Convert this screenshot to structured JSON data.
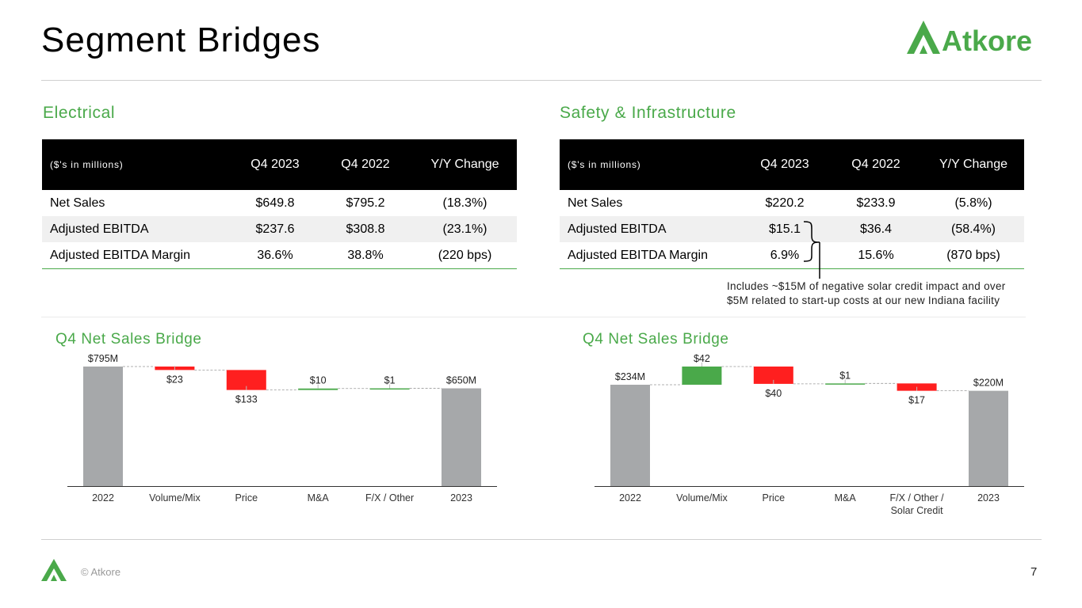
{
  "header": {
    "title": "Segment Bridges",
    "logo_text": "Atkore"
  },
  "colors": {
    "accent_green": "#4aa94a",
    "bar_gray": "#a6a8aa",
    "bar_red": "#ff1f1f",
    "bar_green": "#4aa94a"
  },
  "electrical": {
    "title": "Electrical",
    "table": {
      "unit_label": "($'s in millions)",
      "columns": [
        "Q4 2023",
        "Q4 2022",
        "Y/Y Change"
      ],
      "rows": [
        {
          "label": "Net Sales",
          "values": [
            "$649.8",
            "$795.2",
            "(18.3%)"
          ]
        },
        {
          "label": "Adjusted EBITDA",
          "values": [
            "$237.6",
            "$308.8",
            "(23.1%)"
          ]
        },
        {
          "label": "Adjusted EBITDA Margin",
          "values": [
            "36.6%",
            "38.8%",
            "(220 bps)"
          ]
        }
      ]
    }
  },
  "safety": {
    "title": "Safety & Infrastructure",
    "table": {
      "unit_label": "($'s in millions)",
      "columns": [
        "Q4 2023",
        "Q4 2022",
        "Y/Y Change"
      ],
      "rows": [
        {
          "label": "Net Sales",
          "values": [
            "$220.2",
            "$233.9",
            "(5.8%)"
          ]
        },
        {
          "label": "Adjusted EBITDA",
          "values": [
            "$15.1",
            "$36.4",
            "(58.4%)"
          ]
        },
        {
          "label": "Adjusted EBITDA Margin",
          "values": [
            "6.9%",
            "15.6%",
            "(870 bps)"
          ]
        }
      ]
    },
    "note_line1": "Includes ~$15M of negative solar credit impact and over",
    "note_line2": "$5M related to start-up costs at our new Indiana facility"
  },
  "chart_data": [
    {
      "type": "bar",
      "subtype": "waterfall",
      "title": "Q4 Net Sales Bridge",
      "categories": [
        "2022",
        "Volume/Mix",
        "Price",
        "M&A",
        "F/X / Other",
        "2023"
      ],
      "steps": [
        {
          "kind": "total",
          "value": 795,
          "label": "$795M"
        },
        {
          "kind": "delta",
          "value": -23,
          "label": "$23"
        },
        {
          "kind": "delta",
          "value": -133,
          "label": "$133"
        },
        {
          "kind": "delta",
          "value": 10,
          "label": "$10"
        },
        {
          "kind": "delta",
          "value": 1,
          "label": "$1"
        },
        {
          "kind": "total",
          "value": 650,
          "label": "$650M"
        }
      ],
      "ylim": [
        0,
        795
      ]
    },
    {
      "type": "bar",
      "subtype": "waterfall",
      "title": "Q4 Net Sales Bridge",
      "categories": [
        "2022",
        "Volume/Mix",
        "Price",
        "M&A",
        "F/X / Other / Solar Credit",
        "2023"
      ],
      "steps": [
        {
          "kind": "total",
          "value": 234,
          "label": "$234M"
        },
        {
          "kind": "delta",
          "value": 42,
          "label": "$42"
        },
        {
          "kind": "delta",
          "value": -40,
          "label": "$40"
        },
        {
          "kind": "delta",
          "value": 1,
          "label": "$1"
        },
        {
          "kind": "delta",
          "value": -17,
          "label": "$17"
        },
        {
          "kind": "total",
          "value": 220,
          "label": "$220M"
        }
      ],
      "ylim": [
        0,
        276
      ]
    }
  ],
  "footer": {
    "copyright": "© Atkore",
    "page_number": "7"
  }
}
